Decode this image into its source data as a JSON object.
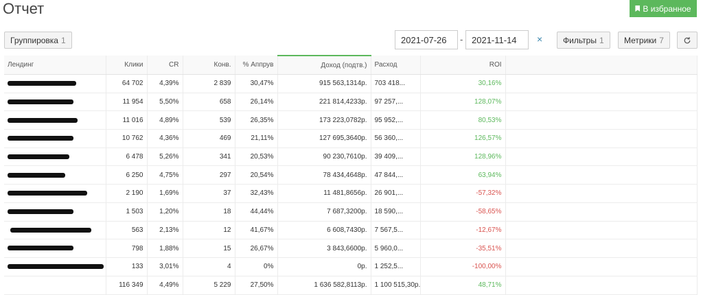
{
  "header": {
    "title": "Отчет",
    "favorite_label": "В избранное"
  },
  "toolbar": {
    "grouping_label": "Группировка",
    "grouping_count": "1",
    "date_from": "2021-07-26",
    "date_separator": "-",
    "date_to": "2021-11-14",
    "clear_glyph": "×",
    "filters_label": "Фильтры",
    "filters_count": "1",
    "metrics_label": "Метрики",
    "metrics_count": "7",
    "refresh_icon": "refresh-icon"
  },
  "table": {
    "columns": [
      "Лендинг",
      "Клики",
      "CR",
      "Конв.",
      "% Аппрув",
      "Доход (подтв.)",
      "Расход",
      "ROI"
    ],
    "sorted_column": "Доход (подтв.)",
    "rows": [
      {
        "clicks": "64 702",
        "cr": "4,39%",
        "conv": "2 839",
        "approve": "30,47%",
        "revenue": "915 563,1314р.",
        "cost": "703 418...",
        "roi": "30,16%",
        "roi_sign": "pos"
      },
      {
        "clicks": "11 954",
        "cr": "5,50%",
        "conv": "658",
        "approve": "26,14%",
        "revenue": "221 814,4233р.",
        "cost": "97 257,...",
        "roi": "128,07%",
        "roi_sign": "pos"
      },
      {
        "clicks": "11 016",
        "cr": "4,89%",
        "conv": "539",
        "approve": "26,35%",
        "revenue": "173 223,0782р.",
        "cost": "95 952,...",
        "roi": "80,53%",
        "roi_sign": "pos"
      },
      {
        "clicks": "10 762",
        "cr": "4,36%",
        "conv": "469",
        "approve": "21,11%",
        "revenue": "127 695,3640р.",
        "cost": "56 360,...",
        "roi": "126,57%",
        "roi_sign": "pos"
      },
      {
        "clicks": "6 478",
        "cr": "5,26%",
        "conv": "341",
        "approve": "20,53%",
        "revenue": "90 230,7610р.",
        "cost": "39 409,...",
        "roi": "128,96%",
        "roi_sign": "pos"
      },
      {
        "clicks": "6 250",
        "cr": "4,75%",
        "conv": "297",
        "approve": "20,54%",
        "revenue": "78 434,4648р.",
        "cost": "47 844,...",
        "roi": "63,94%",
        "roi_sign": "pos"
      },
      {
        "clicks": "2 190",
        "cr": "1,69%",
        "conv": "37",
        "approve": "32,43%",
        "revenue": "11 481,8656р.",
        "cost": "26 901,...",
        "roi": "-57,32%",
        "roi_sign": "neg"
      },
      {
        "clicks": "1 503",
        "cr": "1,20%",
        "conv": "18",
        "approve": "44,44%",
        "revenue": "7 687,3200р.",
        "cost": "18 590,...",
        "roi": "-58,65%",
        "roi_sign": "neg"
      },
      {
        "clicks": "563",
        "cr": "2,13%",
        "conv": "12",
        "approve": "41,67%",
        "revenue": "6 608,7430р.",
        "cost": "7 567,5...",
        "roi": "-12,67%",
        "roi_sign": "neg"
      },
      {
        "clicks": "798",
        "cr": "1,88%",
        "conv": "15",
        "approve": "26,67%",
        "revenue": "3 843,6600р.",
        "cost": "5 960,0...",
        "roi": "-35,51%",
        "roi_sign": "neg"
      },
      {
        "clicks": "133",
        "cr": "3,01%",
        "conv": "4",
        "approve": "0%",
        "revenue": "0р.",
        "cost": "1 252,5...",
        "roi": "-100,00%",
        "roi_sign": "neg"
      }
    ],
    "totals": {
      "clicks": "116 349",
      "cr": "4,49%",
      "conv": "5 229",
      "approve": "27,50%",
      "revenue": "1 636 582,8113р.",
      "cost": "1 100 515,30р.",
      "roi": "48,71%",
      "roi_sign": "pos"
    }
  }
}
